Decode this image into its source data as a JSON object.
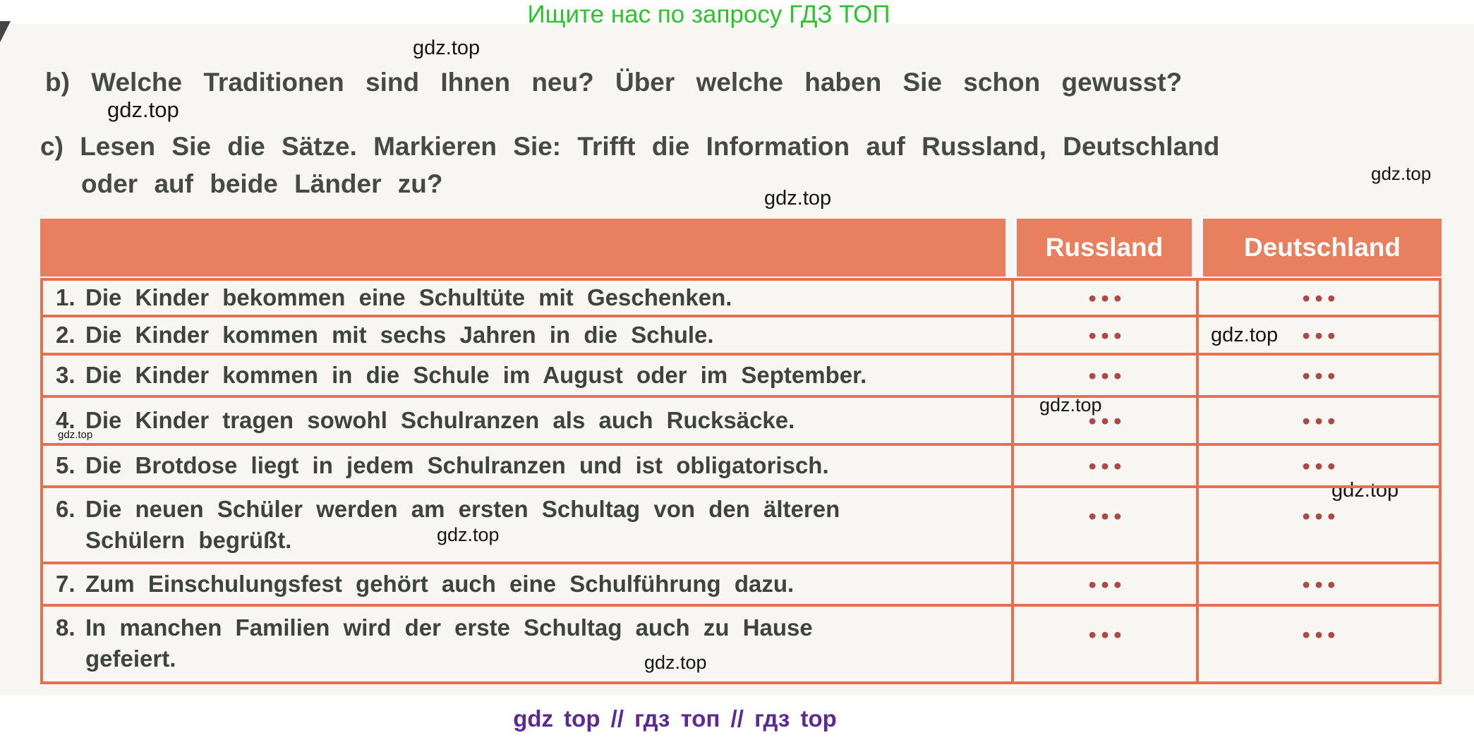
{
  "page": {
    "promo_text": "Ищите нас по запросу ГДЗ ТОП",
    "watermark_text": "gdz.top",
    "footer_text": "gdz top  //  гдз топ  //  гдз top"
  },
  "tasks": {
    "b_label": "b)",
    "b_text": "Welche Traditionen sind Ihnen neu? Über welche haben Sie schon gewusst?",
    "c_label": "c)",
    "c_text_line1": "Lesen Sie die Sätze. Markieren Sie: Trifft die Information auf Russland, Deutschland",
    "c_text_line2": "oder auf beide Länder zu?"
  },
  "table": {
    "col_russland": "Russland",
    "col_deutschland": "Deutschland",
    "answer_placeholder": "•••",
    "rows": [
      {
        "num": "1.",
        "line1": "Die Kinder bekommen eine Schultüte mit Geschenken.",
        "line2": ""
      },
      {
        "num": "2.",
        "line1": "Die Kinder kommen mit sechs Jahren in die Schule.",
        "line2": ""
      },
      {
        "num": "3.",
        "line1": "Die Kinder kommen in die Schule im August oder im September.",
        "line2": ""
      },
      {
        "num": "4.",
        "line1": "Die Kinder tragen sowohl Schulranzen als auch Rucksäcke.",
        "line2": ""
      },
      {
        "num": "5.",
        "line1": "Die Brotdose liegt in jedem Schulranzen und ist obligatorisch.",
        "line2": ""
      },
      {
        "num": "6.",
        "line1": "Die neuen Schüler werden am ersten Schultag von den älteren",
        "line2": "Schülern begrüßt."
      },
      {
        "num": "7.",
        "line1": "Zum Einschulungsfest gehört auch eine Schulführung dazu.",
        "line2": ""
      },
      {
        "num": "8.",
        "line1": "In manchen Familien wird der erste Schultag auch zu Hause",
        "line2": "gefeiert."
      }
    ]
  },
  "colors": {
    "promo_green": "#2bc42b",
    "header_salmon": "#e8805f",
    "border_salmon": "#e4714d",
    "dots_maroon": "#ae4a46",
    "body_text": "#3e443c",
    "footer_purple": "#5c2b92"
  }
}
